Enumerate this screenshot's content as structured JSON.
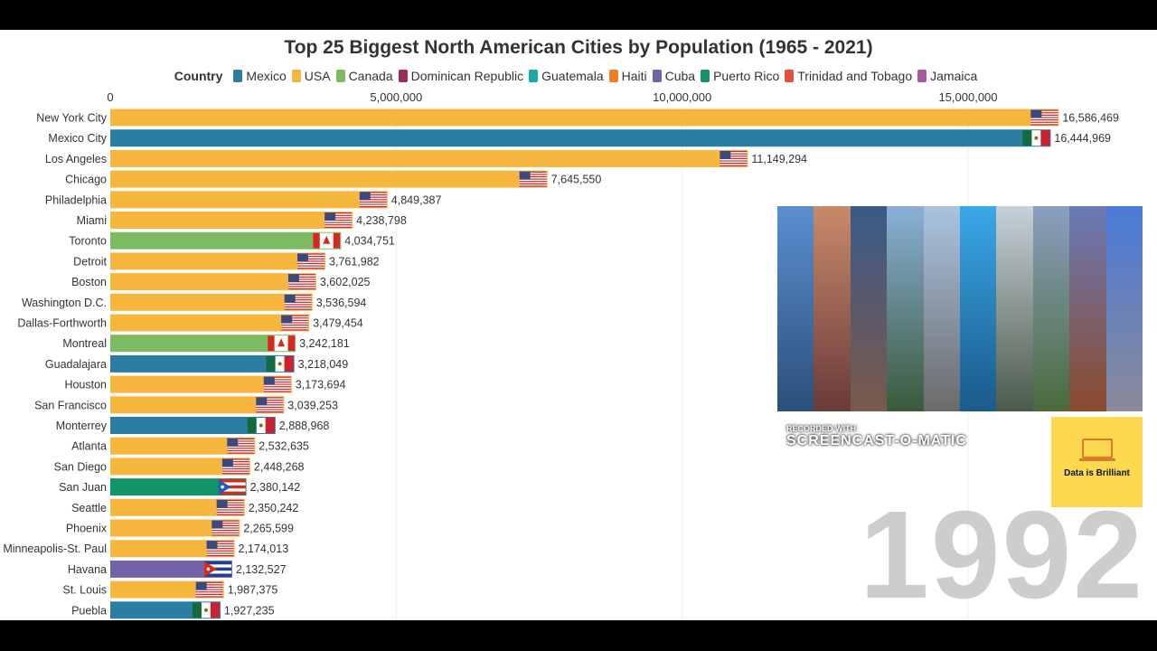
{
  "chart_data": {
    "type": "bar",
    "orientation": "horizontal",
    "title": "Top 25 Biggest North American Cities by Population (1965 - 2021)",
    "legend_title": "Country",
    "legend_position": "top",
    "legend": [
      {
        "name": "Mexico",
        "color": "#2b7ea1"
      },
      {
        "name": "USA",
        "color": "#f7b73e"
      },
      {
        "name": "Canada",
        "color": "#7dbb62"
      },
      {
        "name": "Dominican Republic",
        "color": "#9a2e5f"
      },
      {
        "name": "Guatemala",
        "color": "#19aaa6"
      },
      {
        "name": "Haiti",
        "color": "#ec7f28"
      },
      {
        "name": "Cuba",
        "color": "#7263a6"
      },
      {
        "name": "Puerto Rico",
        "color": "#12936a"
      },
      {
        "name": "Trinidad and Tobago",
        "color": "#e0513f"
      },
      {
        "name": "Jamaica",
        "color": "#a859a0"
      }
    ],
    "xlim": [
      0,
      17500000
    ],
    "x_ticks": [
      "0",
      "5,000,000",
      "10,000,000",
      "15,000,000"
    ],
    "x_tick_values": [
      0,
      5000000,
      10000000,
      15000000
    ],
    "grid": true,
    "current_year": "1992",
    "bars": [
      {
        "city": "New York City",
        "country": "USA",
        "value": 16586469,
        "label": "16,586,469"
      },
      {
        "city": "Mexico City",
        "country": "Mexico",
        "value": 16444969,
        "label": "16,444,969"
      },
      {
        "city": "Los Angeles",
        "country": "USA",
        "value": 11149294,
        "label": "11,149,294"
      },
      {
        "city": "Chicago",
        "country": "USA",
        "value": 7645550,
        "label": "7,645,550"
      },
      {
        "city": "Philadelphia",
        "country": "USA",
        "value": 4849387,
        "label": "4,849,387"
      },
      {
        "city": "Miami",
        "country": "USA",
        "value": 4238798,
        "label": "4,238,798"
      },
      {
        "city": "Toronto",
        "country": "Canada",
        "value": 4034751,
        "label": "4,034,751"
      },
      {
        "city": "Detroit",
        "country": "USA",
        "value": 3761982,
        "label": "3,761,982"
      },
      {
        "city": "Boston",
        "country": "USA",
        "value": 3602025,
        "label": "3,602,025"
      },
      {
        "city": "Washington D.C.",
        "country": "USA",
        "value": 3536594,
        "label": "3,536,594"
      },
      {
        "city": "Dallas-Forthworth",
        "country": "USA",
        "value": 3479454,
        "label": "3,479,454"
      },
      {
        "city": "Montreal",
        "country": "Canada",
        "value": 3242181,
        "label": "3,242,181"
      },
      {
        "city": "Guadalajara",
        "country": "Mexico",
        "value": 3218049,
        "label": "3,218,049"
      },
      {
        "city": "Houston",
        "country": "USA",
        "value": 3173694,
        "label": "3,173,694"
      },
      {
        "city": "San Francisco",
        "country": "USA",
        "value": 3039253,
        "label": "3,039,253"
      },
      {
        "city": "Monterrey",
        "country": "Mexico",
        "value": 2888968,
        "label": "2,888,968"
      },
      {
        "city": "Atlanta",
        "country": "USA",
        "value": 2532635,
        "label": "2,532,635"
      },
      {
        "city": "San Diego",
        "country": "USA",
        "value": 2448268,
        "label": "2,448,268"
      },
      {
        "city": "San Juan",
        "country": "Puerto Rico",
        "value": 2380142,
        "label": "2,380,142"
      },
      {
        "city": "Seattle",
        "country": "USA",
        "value": 2350242,
        "label": "2,350,242"
      },
      {
        "city": "Phoenix",
        "country": "USA",
        "value": 2265599,
        "label": "2,265,599"
      },
      {
        "city": "Minneapolis-St. Paul",
        "country": "USA",
        "value": 2174013,
        "label": "2,174,013"
      },
      {
        "city": "Havana",
        "country": "Cuba",
        "value": 2132527,
        "label": "2,132,527"
      },
      {
        "city": "St. Louis",
        "country": "USA",
        "value": 1987375,
        "label": "1,987,375"
      },
      {
        "city": "Puebla",
        "country": "Mexico",
        "value": 1927235,
        "label": "1,927,235"
      }
    ]
  },
  "brand": {
    "name": "Data is Brilliant",
    "icon": "laptop-chart-icon"
  },
  "watermark": {
    "top": "RECORDED WITH",
    "brand": "SCREENCAST-O-MATIC"
  }
}
